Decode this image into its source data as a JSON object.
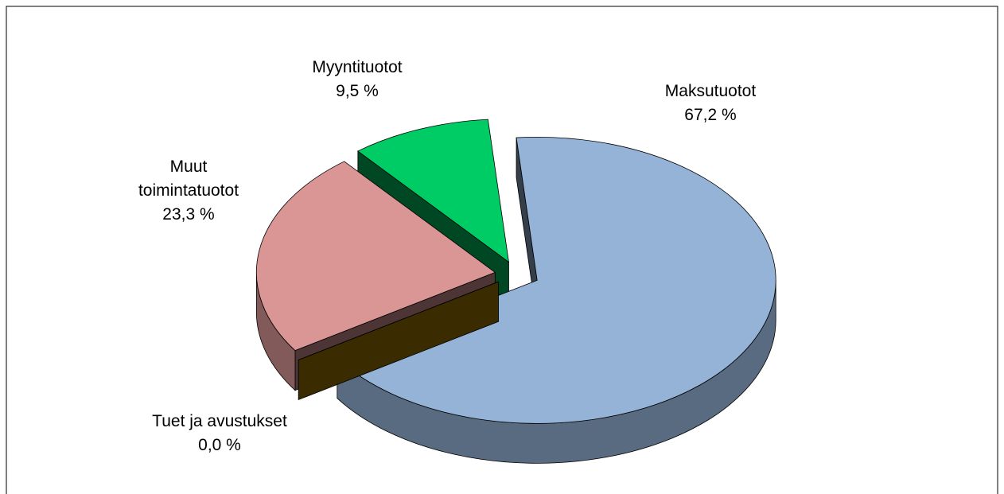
{
  "chart_data": {
    "type": "pie",
    "categories": [
      "Maksutuotot",
      "Tuet ja avustukset",
      "Muut toimintatuotot",
      "Myyntituotot"
    ],
    "values": [
      67.2,
      0.0,
      23.3,
      9.5
    ],
    "value_labels": [
      "67,2 %",
      "0,0 %",
      "23,3 %",
      "9,5 %"
    ],
    "colors": [
      "#95b3d7",
      "#a67c00",
      "#d99694",
      "#00cc66"
    ]
  }
}
